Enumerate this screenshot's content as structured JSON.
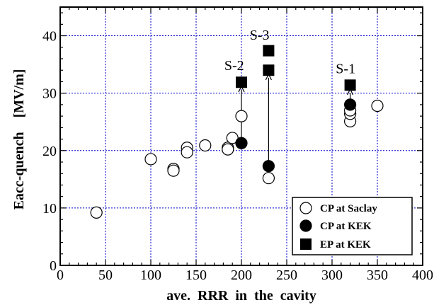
{
  "chart_data": {
    "type": "scatter",
    "xlabel": "ave.  RRR  in  the  cavity",
    "ylabel": "Eacc-quench    [MV/m]",
    "xlim": [
      0,
      400
    ],
    "ylim": [
      0,
      45
    ],
    "xticks": [
      0,
      50,
      100,
      150,
      200,
      250,
      300,
      350,
      400
    ],
    "yticks": [
      0,
      10,
      20,
      30,
      40
    ],
    "grid": true,
    "legend_position": "bottom-right",
    "series": [
      {
        "name": "CP at Saclay",
        "marker": "open-circle",
        "points": [
          {
            "x": 40,
            "y": 9.2
          },
          {
            "x": 100,
            "y": 18.5
          },
          {
            "x": 125,
            "y": 16.8
          },
          {
            "x": 125,
            "y": 16.5
          },
          {
            "x": 140,
            "y": 20.5
          },
          {
            "x": 140,
            "y": 19.7
          },
          {
            "x": 160,
            "y": 20.9
          },
          {
            "x": 185,
            "y": 20.5
          },
          {
            "x": 185,
            "y": 20.2
          },
          {
            "x": 190,
            "y": 22.2
          },
          {
            "x": 200,
            "y": 26.0
          },
          {
            "x": 230,
            "y": 15.2
          },
          {
            "x": 320,
            "y": 25.1
          },
          {
            "x": 320,
            "y": 26.4
          },
          {
            "x": 320,
            "y": 27.0
          },
          {
            "x": 350,
            "y": 27.8
          }
        ]
      },
      {
        "name": "CP at KEK",
        "marker": "filled-circle",
        "points": [
          {
            "x": 200,
            "y": 21.3
          },
          {
            "x": 230,
            "y": 17.3
          },
          {
            "x": 320,
            "y": 28.0
          }
        ]
      },
      {
        "name": "EP at KEK",
        "marker": "filled-square",
        "points": [
          {
            "x": 200,
            "y": 31.9
          },
          {
            "x": 230,
            "y": 34.0
          },
          {
            "x": 230,
            "y": 37.4
          },
          {
            "x": 320,
            "y": 31.4
          }
        ]
      }
    ],
    "annotations": [
      {
        "text": "S-1",
        "x": 315,
        "y": 33.5
      },
      {
        "text": "S-2",
        "x": 192,
        "y": 34.0
      },
      {
        "text": "S-3",
        "x": 220,
        "y": 39.3
      }
    ],
    "arrows": [
      {
        "x": 200,
        "from": 21.3,
        "to": 31.2
      },
      {
        "x": 230,
        "from": 17.3,
        "to": 33.3
      },
      {
        "x": 320,
        "from": 28.0,
        "to": 30.7
      }
    ]
  },
  "colors": {
    "grid": "#0000cc",
    "markers": "#000000",
    "background": "#ffffff"
  }
}
